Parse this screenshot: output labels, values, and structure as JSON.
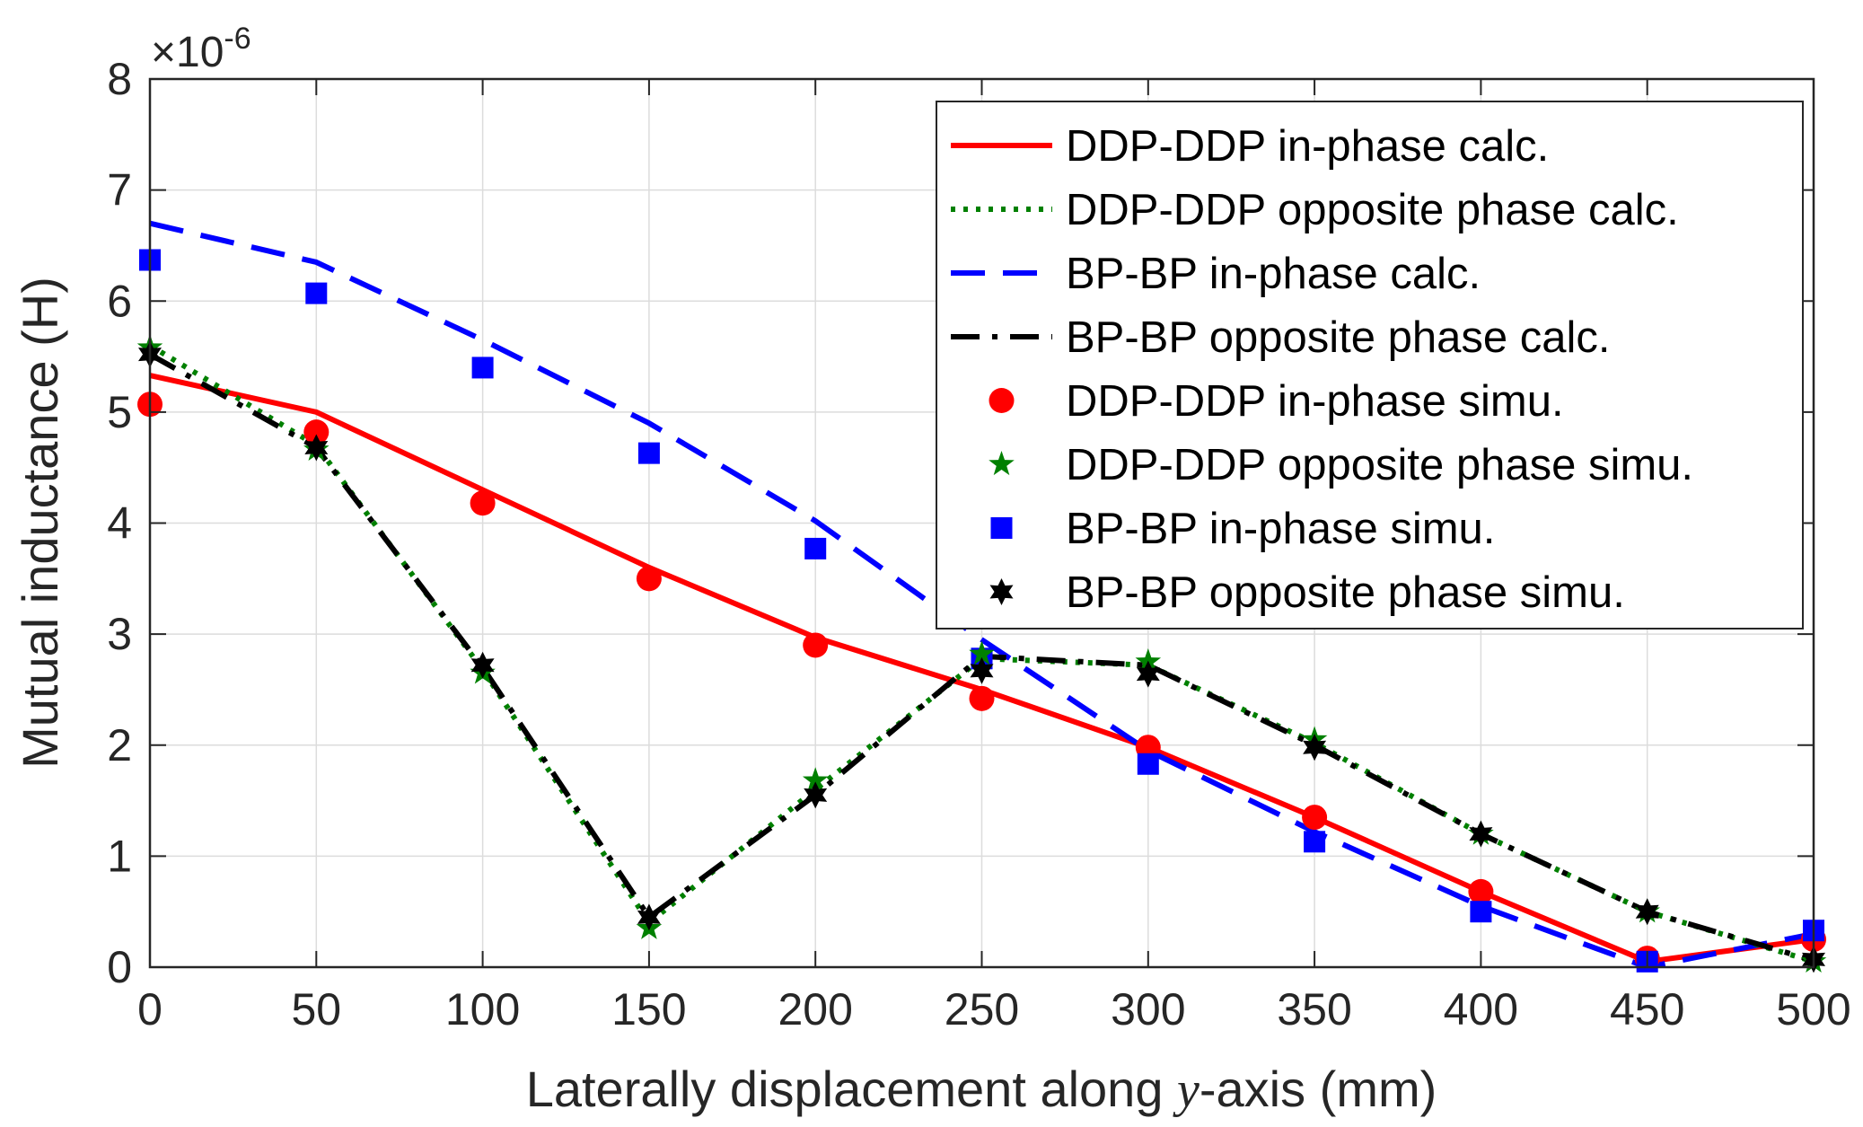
{
  "chart_data": {
    "type": "line",
    "title": "",
    "xlabel_main": "Laterally displacement along ",
    "xlabel_var": "y",
    "xlabel_tail": "-axis (mm)",
    "ylabel": "Mutual inductance (H)",
    "y_exponent_base": "×10",
    "y_exponent_power": "-6",
    "xlim": [
      0,
      500
    ],
    "ylim": [
      0,
      8
    ],
    "x_ticks": [
      0,
      50,
      100,
      150,
      200,
      250,
      300,
      350,
      400,
      450,
      500
    ],
    "x_tick_labels": [
      "0",
      "50",
      "100",
      "150",
      "200",
      "250",
      "300",
      "350",
      "400",
      "450",
      "500"
    ],
    "y_ticks": [
      0,
      1,
      2,
      3,
      4,
      5,
      6,
      7,
      8
    ],
    "y_tick_labels": [
      "0",
      "1",
      "2",
      "3",
      "4",
      "5",
      "6",
      "7",
      "8"
    ],
    "grid": true,
    "legend_position": "top-right",
    "x": [
      0,
      50,
      100,
      150,
      200,
      250,
      300,
      350,
      400,
      450,
      500
    ],
    "series": [
      {
        "name": "DDP-DDP in-phase calc.",
        "kind": "line",
        "style": "solid",
        "color": "#ff0000",
        "values": [
          5.33,
          5.0,
          4.3,
          3.6,
          2.97,
          2.5,
          1.98,
          1.35,
          0.68,
          0.05,
          0.25
        ]
      },
      {
        "name": "DDP-DDP opposite phase calc.",
        "kind": "line",
        "style": "dotted",
        "color": "#008000",
        "values": [
          5.6,
          4.7,
          2.68,
          0.4,
          1.6,
          2.78,
          2.72,
          2.02,
          1.2,
          0.5,
          0.05
        ]
      },
      {
        "name": "BP-BP in-phase calc.",
        "kind": "line",
        "style": "dashed",
        "color": "#0000ff",
        "values": [
          6.7,
          6.35,
          5.65,
          4.9,
          4.02,
          2.95,
          1.95,
          1.22,
          0.55,
          0.0,
          0.3
        ]
      },
      {
        "name": "BP-BP opposite phase calc.",
        "kind": "line",
        "style": "dashdot",
        "color": "#000000",
        "values": [
          5.52,
          4.68,
          2.7,
          0.45,
          1.55,
          2.8,
          2.72,
          2.0,
          1.2,
          0.5,
          0.06
        ]
      },
      {
        "name": "DDP-DDP in-phase simu.",
        "kind": "marker",
        "marker": "circle",
        "color": "#ff0000",
        "values": [
          5.07,
          4.82,
          4.18,
          3.5,
          2.9,
          2.42,
          1.98,
          1.35,
          0.68,
          0.08,
          0.25
        ]
      },
      {
        "name": "DDP-DDP opposite phase simu.",
        "kind": "marker",
        "marker": "star5",
        "color": "#008000",
        "values": [
          5.58,
          4.66,
          2.65,
          0.35,
          1.68,
          2.82,
          2.75,
          2.05,
          1.2,
          0.5,
          0.05
        ]
      },
      {
        "name": "BP-BP in-phase simu.",
        "kind": "marker",
        "marker": "square",
        "color": "#0000ff",
        "values": [
          6.37,
          6.07,
          5.4,
          4.63,
          3.77,
          2.78,
          1.83,
          1.13,
          0.5,
          0.05,
          0.33
        ]
      },
      {
        "name": "BP-BP opposite phase simu.",
        "kind": "marker",
        "marker": "hexagram",
        "color": "#000000",
        "values": [
          5.52,
          4.68,
          2.72,
          0.45,
          1.55,
          2.67,
          2.64,
          1.98,
          1.2,
          0.5,
          0.07
        ]
      }
    ]
  }
}
